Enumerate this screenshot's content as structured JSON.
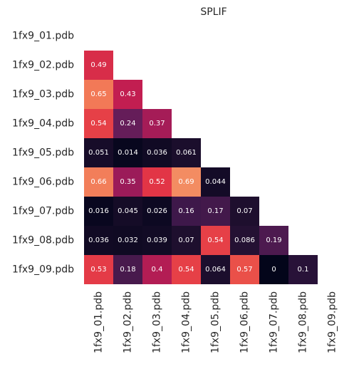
{
  "chart_data": {
    "type": "heatmap",
    "title": "SPLIF",
    "row_labels": [
      "1fx9_01.pdb",
      "1fx9_02.pdb",
      "1fx9_03.pdb",
      "1fx9_04.pdb",
      "1fx9_05.pdb",
      "1fx9_06.pdb",
      "1fx9_07.pdb",
      "1fx9_08.pdb",
      "1fx9_09.pdb"
    ],
    "col_labels": [
      "1fx9_01.pdb",
      "1fx9_02.pdb",
      "1fx9_03.pdb",
      "1fx9_04.pdb",
      "1fx9_05.pdb",
      "1fx9_06.pdb",
      "1fx9_07.pdb",
      "1fx9_08.pdb",
      "1fx9_09.pdb"
    ],
    "mask": "upper-triangle-and-diagonal",
    "colormap": "rocket",
    "value_range": [
      0,
      0.69
    ],
    "values": [
      [
        null,
        null,
        null,
        null,
        null,
        null,
        null,
        null,
        null
      ],
      [
        0.49,
        null,
        null,
        null,
        null,
        null,
        null,
        null,
        null
      ],
      [
        0.65,
        0.43,
        null,
        null,
        null,
        null,
        null,
        null,
        null
      ],
      [
        0.54,
        0.24,
        0.37,
        null,
        null,
        null,
        null,
        null,
        null
      ],
      [
        0.051,
        0.014,
        0.036,
        0.061,
        null,
        null,
        null,
        null,
        null
      ],
      [
        0.66,
        0.35,
        0.52,
        0.69,
        0.044,
        null,
        null,
        null,
        null
      ],
      [
        0.016,
        0.045,
        0.026,
        0.16,
        0.17,
        0.07,
        null,
        null,
        null
      ],
      [
        0.036,
        0.032,
        0.039,
        0.07,
        0.54,
        0.086,
        0.19,
        null,
        null
      ],
      [
        0.53,
        0.18,
        0.4,
        0.54,
        0.064,
        0.57,
        0,
        0.1,
        null
      ]
    ],
    "cell_labels": [
      [
        null,
        null,
        null,
        null,
        null,
        null,
        null,
        null,
        null
      ],
      [
        "0.49",
        null,
        null,
        null,
        null,
        null,
        null,
        null,
        null
      ],
      [
        "0.65",
        "0.43",
        null,
        null,
        null,
        null,
        null,
        null,
        null
      ],
      [
        "0.54",
        "0.24",
        "0.37",
        null,
        null,
        null,
        null,
        null,
        null
      ],
      [
        "0.051",
        "0.014",
        "0.036",
        "0.061",
        null,
        null,
        null,
        null,
        null
      ],
      [
        "0.66",
        "0.35",
        "0.52",
        "0.69",
        "0.044",
        null,
        null,
        null,
        null
      ],
      [
        "0.016",
        "0.045",
        "0.026",
        "0.16",
        "0.17",
        "0.07",
        null,
        null,
        null
      ],
      [
        "0.036",
        "0.032",
        "0.039",
        "0.07",
        "0.54",
        "0.086",
        "0.19",
        null,
        null
      ],
      [
        "0.53",
        "0.18",
        "0.4",
        "0.54",
        "0.064",
        "0.57",
        "0",
        "0.1",
        null
      ]
    ],
    "grid": false,
    "colorbar": false
  }
}
